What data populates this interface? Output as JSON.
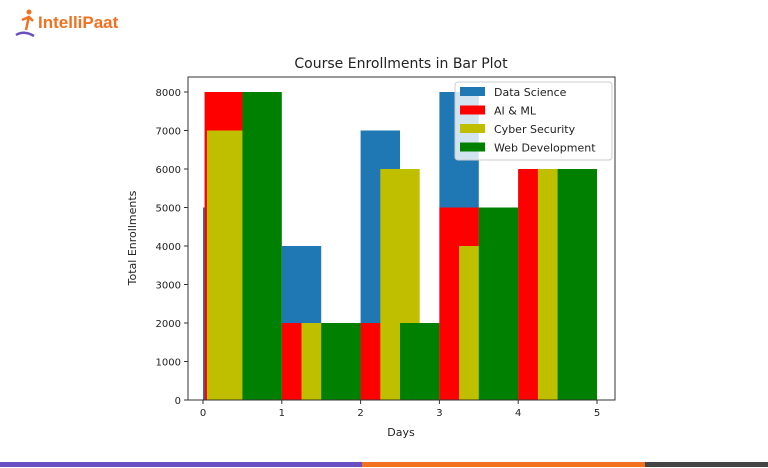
{
  "brand": {
    "name": "IntelliPaat"
  },
  "chart_data": {
    "type": "bar",
    "title": "Course Enrollments in Bar Plot",
    "xlabel": "Days",
    "ylabel": "Total Enrollments",
    "xlim": [
      -0.2,
      5.2
    ],
    "ylim": [
      0,
      8400
    ],
    "xticks": [
      "0",
      "1",
      "2",
      "3",
      "4",
      "5"
    ],
    "yticks": [
      "0",
      "1000",
      "2000",
      "3000",
      "4000",
      "5000",
      "6000",
      "7000",
      "8000"
    ],
    "grid": false,
    "legend_position": "top-right",
    "bar_width": 0.5,
    "series": [
      {
        "name": "Data Science",
        "color": "#1f77b4",
        "x": [
          0,
          1,
          2,
          3,
          4
        ],
        "values": [
          5000,
          4000,
          7000,
          8000,
          6000
        ]
      },
      {
        "name": "AI & ML",
        "color": "#ff0000",
        "x": [
          0.02,
          1,
          2,
          3,
          4
        ],
        "values": [
          8000,
          2000,
          2000,
          5000,
          6000
        ]
      },
      {
        "name": "Cyber Security",
        "color": "#bfbf00",
        "x": [
          0.05,
          1.25,
          2.25,
          3.25,
          4.25
        ],
        "values": [
          7000,
          2000,
          6000,
          4000,
          6000
        ]
      },
      {
        "name": "Web Development",
        "color": "#008000",
        "x": [
          0.5,
          1.5,
          2.5,
          3.5,
          4.5
        ],
        "values": [
          8000,
          2000,
          2000,
          5000,
          6000
        ]
      }
    ]
  },
  "footer_colors": [
    "#6a4fc2",
    "#f37021",
    "#444444"
  ]
}
